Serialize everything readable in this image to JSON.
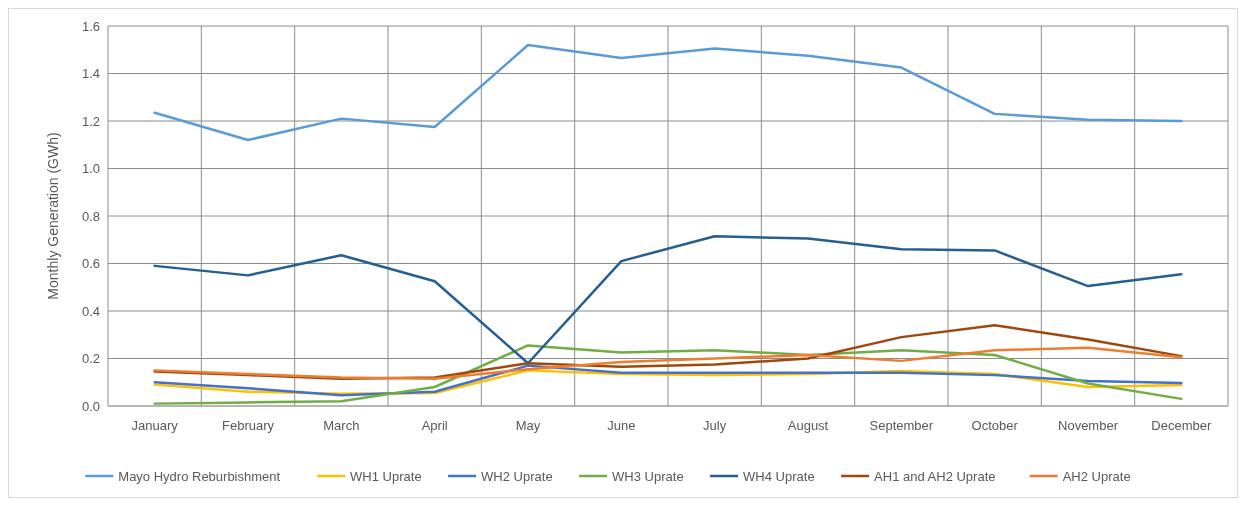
{
  "chart_data": {
    "type": "line",
    "ylabel": "Monthly Generation (GWh)",
    "categories": [
      "January",
      "February",
      "March",
      "April",
      "May",
      "June",
      "July",
      "August",
      "September",
      "October",
      "November",
      "December"
    ],
    "series": [
      {
        "name": "Mayo Hydro Reburbishment",
        "color": "#5b9bd5",
        "values": [
          1.235,
          1.12,
          1.21,
          1.175,
          1.52,
          1.465,
          1.505,
          1.475,
          1.425,
          1.23,
          1.205,
          1.2
        ]
      },
      {
        "name": "WH1 Uprate",
        "color": "#ffc000",
        "values": [
          0.09,
          0.06,
          0.052,
          0.055,
          0.15,
          0.135,
          0.13,
          0.135,
          0.147,
          0.135,
          0.08,
          0.088
        ]
      },
      {
        "name": "WH2 Uprate",
        "color": "#4472c4",
        "values": [
          0.1,
          0.075,
          0.045,
          0.06,
          0.17,
          0.14,
          0.14,
          0.14,
          0.14,
          0.13,
          0.105,
          0.097
        ]
      },
      {
        "name": "WH3 Uprate",
        "color": "#70ad47",
        "values": [
          0.01,
          0.015,
          0.02,
          0.08,
          0.255,
          0.225,
          0.235,
          0.215,
          0.235,
          0.215,
          0.095,
          0.03
        ]
      },
      {
        "name": "WH4 Uprate",
        "color": "#255e91",
        "values": [
          0.59,
          0.55,
          0.635,
          0.525,
          0.18,
          0.61,
          0.715,
          0.705,
          0.66,
          0.655,
          0.505,
          0.555
        ]
      },
      {
        "name": "AH1 and AH2 Uprate",
        "color": "#9e480e",
        "values": [
          0.145,
          0.13,
          0.115,
          0.12,
          0.18,
          0.165,
          0.175,
          0.2,
          0.29,
          0.34,
          0.28,
          0.21
        ]
      },
      {
        "name": "AH2 Uprate",
        "color": "#ed7d31",
        "values": [
          0.15,
          0.135,
          0.12,
          0.115,
          0.155,
          0.185,
          0.2,
          0.215,
          0.19,
          0.235,
          0.245,
          0.205
        ]
      }
    ],
    "ylim": [
      0,
      1.6
    ],
    "yticks": [
      {
        "value": 0,
        "label": "0.0"
      },
      {
        "value": 0.2,
        "label": "0.2"
      },
      {
        "value": 0.4,
        "label": "0.4"
      },
      {
        "value": 0.6,
        "label": "0.6"
      },
      {
        "value": 0.8,
        "label": "0.8"
      },
      {
        "value": 1.0,
        "label": "1.0"
      },
      {
        "value": 1.2,
        "label": "1.2"
      },
      {
        "value": 1.4,
        "label": "1.4"
      },
      {
        "value": 1.6,
        "label": "1.6"
      }
    ],
    "grid": true,
    "legend": "bottom",
    "marker": "none",
    "line_style": "solid"
  }
}
